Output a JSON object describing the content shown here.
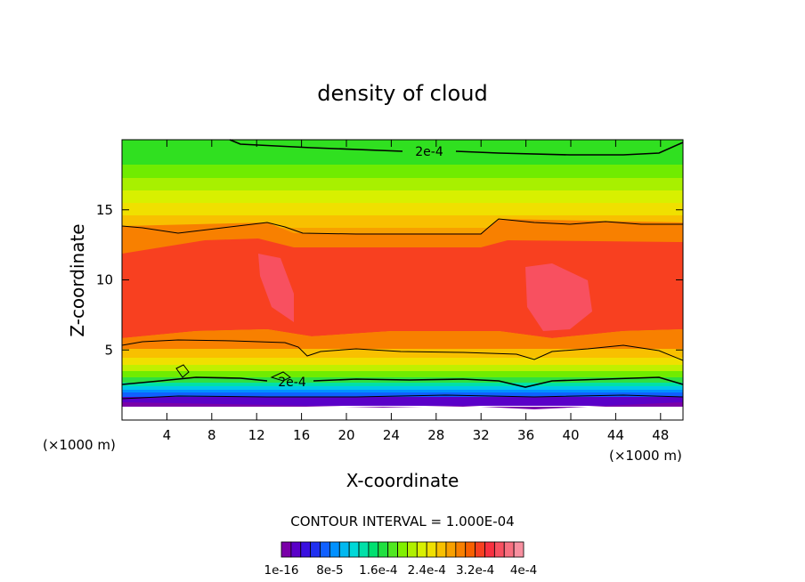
{
  "chart_data": {
    "type": "heatmap",
    "title": "density of cloud",
    "xlabel": "X-coordinate",
    "ylabel": "Z-coordinate",
    "x_unit": "(×1000 m)",
    "x_unit_right": "(×1000 m)",
    "xlim": [
      0,
      50
    ],
    "ylim": [
      0,
      20
    ],
    "x_ticks": [
      "4",
      "8",
      "12",
      "16",
      "20",
      "24",
      "28",
      "32",
      "36",
      "40",
      "44",
      "48"
    ],
    "y_ticks": [
      "5",
      "10",
      "15"
    ],
    "x_tick_values": [
      4,
      8,
      12,
      16,
      20,
      24,
      28,
      32,
      36,
      40,
      44,
      48
    ],
    "y_tick_values": [
      5,
      10,
      15
    ],
    "contour_interval_text": "CONTOUR INTERVAL = 1.000E-04",
    "contour_labels": [
      "2e-4",
      "2e-4"
    ],
    "colorbar_labels": [
      "1e-16",
      "8e-5",
      "1.6e-4",
      "2.4e-4",
      "3.2e-4",
      "4e-4"
    ],
    "colorbar_range": [
      0,
      0.0004
    ],
    "colorbar_colors": [
      "#7a00a8",
      "#5a00c8",
      "#3a10e0",
      "#2030f0",
      "#1060ff",
      "#0090ff",
      "#00b8f0",
      "#00d8d8",
      "#00e0a8",
      "#00e070",
      "#20e040",
      "#50e820",
      "#80f000",
      "#b0f000",
      "#d8f000",
      "#f0e000",
      "#f8c000",
      "#f8a000",
      "#f88000",
      "#f86000",
      "#f84020",
      "#f83040",
      "#f85060",
      "#f87080",
      "#f890a0"
    ]
  }
}
